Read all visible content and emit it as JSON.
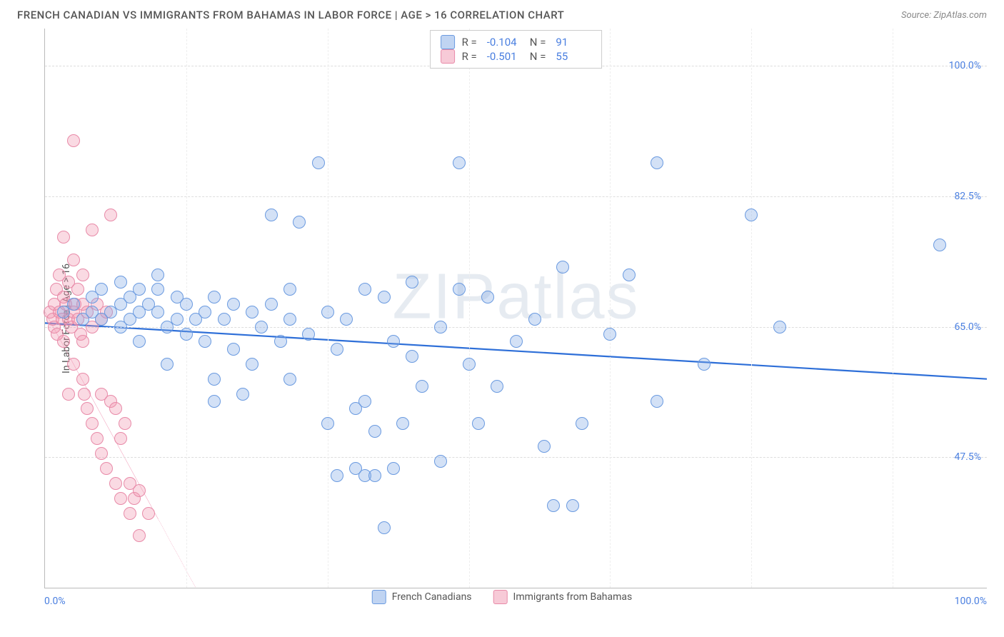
{
  "header": {
    "title": "FRENCH CANADIAN VS IMMIGRANTS FROM BAHAMAS IN LABOR FORCE | AGE > 16 CORRELATION CHART",
    "source": "Source: ZipAtlas.com"
  },
  "chart": {
    "type": "scatter",
    "ylabel": "In Labor Force | Age > 16",
    "watermark": "ZIPatlas",
    "xlim": [
      0,
      100
    ],
    "ylim": [
      30,
      105
    ],
    "x_axis": {
      "min_label": "0.0%",
      "max_label": "100.0%"
    },
    "y_ticks": [
      {
        "value": 100.0,
        "label": "100.0%"
      },
      {
        "value": 82.5,
        "label": "82.5%"
      },
      {
        "value": 65.0,
        "label": "65.0%"
      },
      {
        "value": 47.5,
        "label": "47.5%"
      }
    ],
    "x_grid": [
      0,
      15,
      30,
      45,
      60,
      75,
      90
    ],
    "legend_top": {
      "series1": {
        "r_label": "R =",
        "r_value": "-0.104",
        "n_label": "N =",
        "n_value": "91"
      },
      "series2": {
        "r_label": "R =",
        "r_value": "-0.501",
        "n_label": "N =",
        "n_value": "55"
      }
    },
    "legend_bottom": {
      "series1": "French Canadians",
      "series2": "Immigrants from Bahamas"
    },
    "colors": {
      "blue_fill": "#9cbce9",
      "blue_stroke": "#6a9ae0",
      "blue_line": "#2e6fd8",
      "pink_fill": "#f4b3c5",
      "pink_stroke": "#e88aa8",
      "pink_line": "#e85a8a",
      "grid": "#dddddd",
      "axis": "#bbbbbb",
      "tick_text": "#4a7fe0",
      "title_text": "#555555",
      "label_text": "#555555"
    },
    "marker_radius": 9,
    "series": {
      "french_canadians": {
        "color": "blue",
        "trend": {
          "x1": 0,
          "y1": 65.5,
          "x2": 100,
          "y2": 58.0
        },
        "points": [
          [
            2,
            67
          ],
          [
            3,
            68
          ],
          [
            4,
            66
          ],
          [
            5,
            69
          ],
          [
            5,
            67
          ],
          [
            6,
            70
          ],
          [
            6,
            66
          ],
          [
            7,
            67
          ],
          [
            8,
            68
          ],
          [
            8,
            65
          ],
          [
            9,
            69
          ],
          [
            9,
            66
          ],
          [
            10,
            70
          ],
          [
            10,
            67
          ],
          [
            10,
            63
          ],
          [
            11,
            68
          ],
          [
            12,
            67
          ],
          [
            12,
            72
          ],
          [
            13,
            65
          ],
          [
            13,
            60
          ],
          [
            14,
            69
          ],
          [
            14,
            66
          ],
          [
            15,
            68
          ],
          [
            15,
            64
          ],
          [
            16,
            66
          ],
          [
            17,
            67
          ],
          [
            17,
            63
          ],
          [
            18,
            69
          ],
          [
            18,
            58
          ],
          [
            18,
            55
          ],
          [
            19,
            66
          ],
          [
            20,
            68
          ],
          [
            20,
            62
          ],
          [
            21,
            56
          ],
          [
            22,
            67
          ],
          [
            22,
            60
          ],
          [
            23,
            65
          ],
          [
            24,
            68
          ],
          [
            24,
            80
          ],
          [
            25,
            63
          ],
          [
            26,
            70
          ],
          [
            26,
            58
          ],
          [
            27,
            79
          ],
          [
            28,
            64
          ],
          [
            29,
            87
          ],
          [
            30,
            67
          ],
          [
            30,
            52
          ],
          [
            31,
            62
          ],
          [
            31,
            45
          ],
          [
            32,
            66
          ],
          [
            33,
            54
          ],
          [
            33,
            46
          ],
          [
            34,
            70
          ],
          [
            34,
            45
          ],
          [
            35,
            51
          ],
          [
            35,
            45
          ],
          [
            36,
            69
          ],
          [
            36,
            38
          ],
          [
            37,
            63
          ],
          [
            37,
            46
          ],
          [
            38,
            52
          ],
          [
            39,
            71
          ],
          [
            39,
            61
          ],
          [
            40,
            57
          ],
          [
            42,
            65
          ],
          [
            42,
            47
          ],
          [
            44,
            87
          ],
          [
            44,
            70
          ],
          [
            45,
            60
          ],
          [
            46,
            52
          ],
          [
            47,
            69
          ],
          [
            48,
            57
          ],
          [
            50,
            63
          ],
          [
            52,
            66
          ],
          [
            53,
            49
          ],
          [
            54,
            41
          ],
          [
            55,
            73
          ],
          [
            56,
            41
          ],
          [
            57,
            52
          ],
          [
            60,
            64
          ],
          [
            62,
            72
          ],
          [
            65,
            87
          ],
          [
            65,
            55
          ],
          [
            75,
            80
          ],
          [
            78,
            65
          ],
          [
            95,
            76
          ],
          [
            70,
            60
          ],
          [
            34,
            55
          ],
          [
            26,
            66
          ],
          [
            12,
            70
          ],
          [
            8,
            71
          ]
        ]
      },
      "immigrants_bahamas": {
        "color": "pink",
        "trend": {
          "x1": 0,
          "y1": 67,
          "x2": 16,
          "y2": 30
        },
        "points": [
          [
            0.5,
            67
          ],
          [
            0.8,
            66
          ],
          [
            1,
            68
          ],
          [
            1,
            65
          ],
          [
            1.2,
            70
          ],
          [
            1.3,
            64
          ],
          [
            1.5,
            67
          ],
          [
            1.5,
            72
          ],
          [
            1.8,
            66
          ],
          [
            2,
            69
          ],
          [
            2,
            63
          ],
          [
            2,
            77
          ],
          [
            2.2,
            68
          ],
          [
            2.5,
            66
          ],
          [
            2.5,
            71
          ],
          [
            2.8,
            65
          ],
          [
            3,
            67
          ],
          [
            3,
            74
          ],
          [
            3,
            60
          ],
          [
            3.2,
            68
          ],
          [
            3.5,
            66
          ],
          [
            3.5,
            70
          ],
          [
            3.8,
            64
          ],
          [
            4,
            68
          ],
          [
            4,
            58
          ],
          [
            4,
            72
          ],
          [
            4.2,
            56
          ],
          [
            4.5,
            67
          ],
          [
            4.5,
            54
          ],
          [
            5,
            65
          ],
          [
            5,
            78
          ],
          [
            5,
            52
          ],
          [
            5.5,
            68
          ],
          [
            5.5,
            50
          ],
          [
            6,
            66
          ],
          [
            6,
            56
          ],
          [
            6,
            48
          ],
          [
            6.5,
            67
          ],
          [
            6.5,
            46
          ],
          [
            7,
            55
          ],
          [
            7,
            80
          ],
          [
            7.5,
            54
          ],
          [
            7.5,
            44
          ],
          [
            8,
            50
          ],
          [
            8,
            42
          ],
          [
            8.5,
            52
          ],
          [
            9,
            44
          ],
          [
            9,
            40
          ],
          [
            9.5,
            42
          ],
          [
            10,
            43
          ],
          [
            10,
            37
          ],
          [
            11,
            40
          ],
          [
            3,
            90
          ],
          [
            2.5,
            56
          ],
          [
            4,
            63
          ]
        ]
      }
    }
  }
}
